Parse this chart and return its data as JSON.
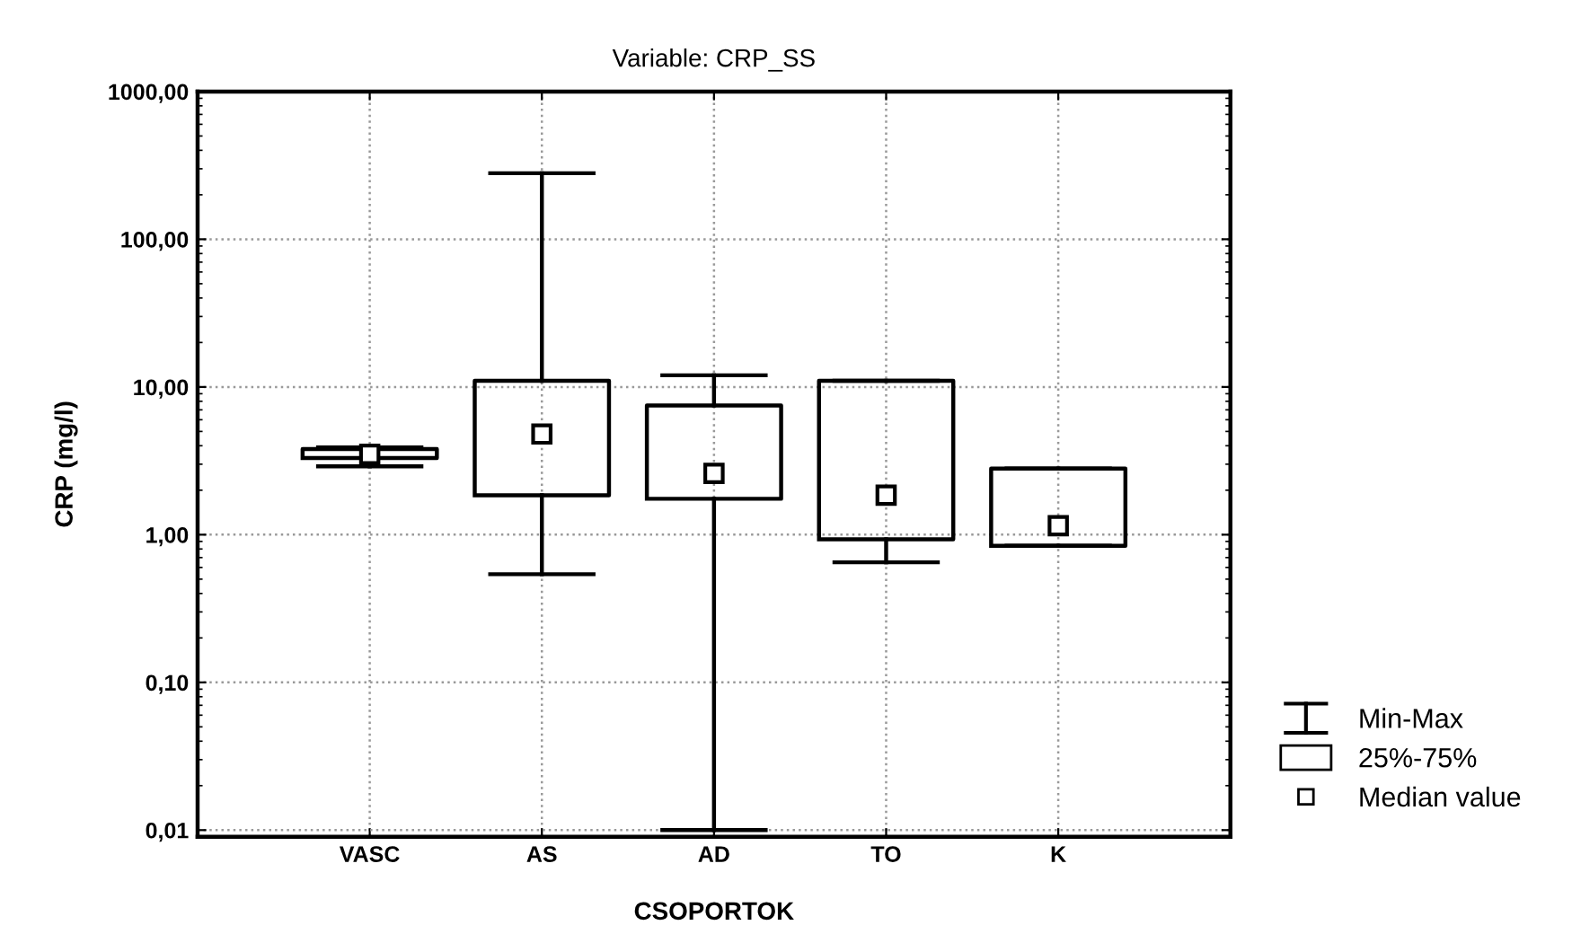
{
  "chart_data": {
    "type": "box",
    "title": "Variable: CRP_SS",
    "xlabel": "CSOPORTOK",
    "ylabel": "CRP (mg/l)",
    "categories": [
      "VASC",
      "AS",
      "AD",
      "TO",
      "K"
    ],
    "boxes": [
      {
        "low": 2.9,
        "q1": 3.3,
        "median": 3.5,
        "q3": 3.8,
        "high": 3.9
      },
      {
        "low": 0.54,
        "q1": 1.85,
        "median": 4.8,
        "q3": 11,
        "high": 280
      },
      {
        "low": 0.01,
        "q1": 1.75,
        "median": 2.6,
        "q3": 7.5,
        "high": 12
      },
      {
        "low": 0.65,
        "q1": 0.93,
        "median": 1.85,
        "q3": 11,
        "high": 11
      },
      {
        "low": 0.84,
        "q1": 0.84,
        "median": 1.15,
        "q3": 2.8,
        "high": 2.8
      }
    ],
    "log": "y",
    "ylim": [
      0.009,
      1000
    ],
    "yticks": [
      {
        "value": 0.01,
        "label": "0,01"
      },
      {
        "value": 0.1,
        "label": "0,10"
      },
      {
        "value": 1,
        "label": "1,00"
      },
      {
        "value": 10,
        "label": "10,00"
      },
      {
        "value": 100,
        "label": "100,00"
      },
      {
        "value": 1000,
        "label": "1000,00"
      }
    ],
    "grid": true,
    "marker": "square",
    "annotations": [
      "Min-Max",
      "25%-75%",
      "Median value"
    ]
  }
}
